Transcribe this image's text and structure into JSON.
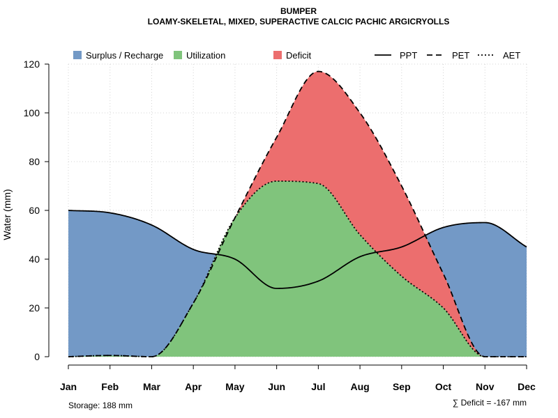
{
  "chart_data": {
    "type": "area",
    "title": "BUMPER",
    "subtitle": "LOAMY-SKELETAL, MIXED, SUPERACTIVE CALCIC PACHIC ARGICRYOLLS",
    "xlabel": "",
    "ylabel": "Water (mm)",
    "ylim": [
      0,
      120
    ],
    "yticks": [
      0,
      20,
      40,
      60,
      80,
      100,
      120
    ],
    "categories": [
      "Jan",
      "Feb",
      "Mar",
      "Apr",
      "May",
      "Jun",
      "Jul",
      "Aug",
      "Sep",
      "Oct",
      "Nov",
      "Dec"
    ],
    "grid": true,
    "legend": {
      "position": "top",
      "areas": [
        {
          "label": "Surplus / Recharge",
          "color": "#7399c6"
        },
        {
          "label": "Utilization",
          "color": "#80c47c"
        },
        {
          "label": "Deficit",
          "color": "#ec6e6e"
        }
      ],
      "lines": [
        {
          "label": "PPT",
          "style": "solid"
        },
        {
          "label": "PET",
          "style": "dashed"
        },
        {
          "label": "AET",
          "style": "dotted"
        }
      ]
    },
    "series": [
      {
        "name": "PPT",
        "values": [
          60,
          59,
          54,
          44,
          40,
          28,
          31,
          41,
          45,
          53,
          55,
          45
        ]
      },
      {
        "name": "PET",
        "values": [
          0,
          0.5,
          0,
          22,
          57,
          90,
          117,
          100,
          70,
          34,
          0,
          0
        ]
      },
      {
        "name": "AET",
        "values": [
          0,
          0.5,
          0,
          22,
          57,
          72,
          71,
          50,
          33,
          20,
          0,
          0
        ]
      }
    ],
    "annotations": {
      "storage": "Storage: 188 mm",
      "deficit": "∑ Deficit = -167 mm"
    }
  }
}
